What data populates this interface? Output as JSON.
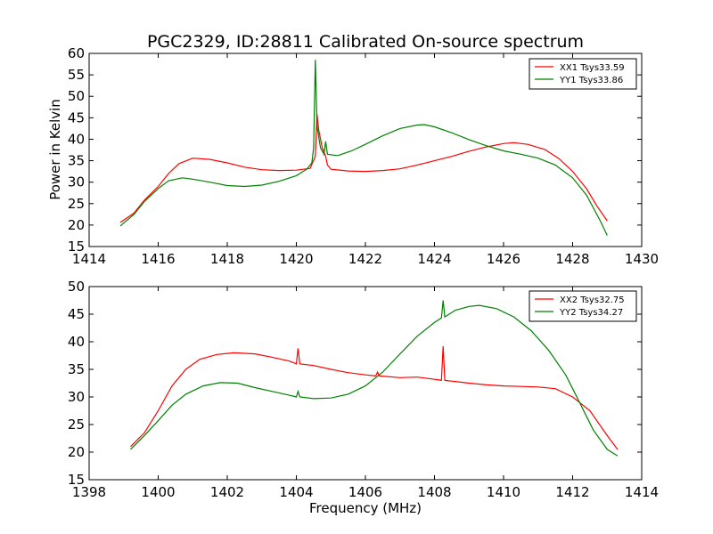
{
  "figure": {
    "title": "PGC2329, ID:28811 Calibrated On-source spectrum",
    "xlabel": "Frequency (MHz)",
    "ylabel": "Power in Kelvin"
  },
  "chart_data": [
    {
      "type": "line",
      "title": "PGC2329, ID:28811 Calibrated On-source spectrum",
      "xlabel": "",
      "ylabel": "Power in Kelvin",
      "xlim": [
        1414,
        1430
      ],
      "ylim": [
        15,
        60
      ],
      "xticks": [
        1414,
        1416,
        1418,
        1420,
        1422,
        1424,
        1426,
        1428,
        1430
      ],
      "yticks": [
        15,
        20,
        25,
        30,
        35,
        40,
        45,
        50,
        55,
        60
      ],
      "legend_position": "top-right",
      "grid": false,
      "series": [
        {
          "name": "XX1 Tsys33.59",
          "color": "#ff0000",
          "points": [
            [
              1414.9,
              20.6
            ],
            [
              1415.3,
              22.8
            ],
            [
              1415.6,
              25.8
            ],
            [
              1416.0,
              29.0
            ],
            [
              1416.3,
              32.0
            ],
            [
              1416.6,
              34.3
            ],
            [
              1417.0,
              35.6
            ],
            [
              1417.5,
              35.3
            ],
            [
              1418.0,
              34.5
            ],
            [
              1418.5,
              33.5
            ],
            [
              1419.0,
              32.9
            ],
            [
              1419.5,
              32.7
            ],
            [
              1420.0,
              32.8
            ],
            [
              1420.4,
              33.2
            ],
            [
              1420.55,
              36.0
            ],
            [
              1420.6,
              45.8
            ],
            [
              1420.65,
              42.0
            ],
            [
              1420.75,
              38.0
            ],
            [
              1420.85,
              36.0
            ],
            [
              1420.9,
              34.0
            ],
            [
              1421.0,
              33.0
            ],
            [
              1421.5,
              32.6
            ],
            [
              1422.0,
              32.5
            ],
            [
              1422.5,
              32.7
            ],
            [
              1423.0,
              33.1
            ],
            [
              1423.5,
              34.0
            ],
            [
              1424.0,
              35.0
            ],
            [
              1424.5,
              36.0
            ],
            [
              1425.0,
              37.2
            ],
            [
              1425.5,
              38.2
            ],
            [
              1426.0,
              39.0
            ],
            [
              1426.3,
              39.2
            ],
            [
              1426.7,
              38.8
            ],
            [
              1427.2,
              37.6
            ],
            [
              1427.6,
              35.5
            ],
            [
              1428.0,
              32.5
            ],
            [
              1428.4,
              28.5
            ],
            [
              1428.7,
              24.5
            ],
            [
              1429.0,
              21.0
            ]
          ]
        },
        {
          "name": "YY1 Tsys33.86",
          "color": "#008000",
          "points": [
            [
              1414.9,
              19.8
            ],
            [
              1415.3,
              22.5
            ],
            [
              1415.6,
              25.5
            ],
            [
              1416.0,
              28.5
            ],
            [
              1416.3,
              30.3
            ],
            [
              1416.7,
              31.0
            ],
            [
              1417.0,
              30.7
            ],
            [
              1417.5,
              30.0
            ],
            [
              1418.0,
              29.2
            ],
            [
              1418.5,
              29.0
            ],
            [
              1419.0,
              29.3
            ],
            [
              1419.5,
              30.2
            ],
            [
              1420.0,
              31.5
            ],
            [
              1420.3,
              33.0
            ],
            [
              1420.45,
              34.5
            ],
            [
              1420.5,
              38.0
            ],
            [
              1420.55,
              58.5
            ],
            [
              1420.6,
              43.0
            ],
            [
              1420.7,
              38.0
            ],
            [
              1420.8,
              36.5
            ],
            [
              1420.85,
              39.5
            ],
            [
              1420.9,
              36.5
            ],
            [
              1421.2,
              36.2
            ],
            [
              1421.6,
              37.3
            ],
            [
              1422.0,
              38.8
            ],
            [
              1422.5,
              40.8
            ],
            [
              1423.0,
              42.5
            ],
            [
              1423.5,
              43.3
            ],
            [
              1423.7,
              43.4
            ],
            [
              1424.0,
              42.9
            ],
            [
              1424.5,
              41.5
            ],
            [
              1425.0,
              39.9
            ],
            [
              1425.5,
              38.5
            ],
            [
              1426.0,
              37.3
            ],
            [
              1426.5,
              36.5
            ],
            [
              1427.0,
              35.6
            ],
            [
              1427.5,
              34.0
            ],
            [
              1428.0,
              31.0
            ],
            [
              1428.4,
              27.0
            ],
            [
              1428.8,
              21.0
            ],
            [
              1429.0,
              17.6
            ]
          ]
        }
      ]
    },
    {
      "type": "line",
      "title": "",
      "xlabel": "Frequency (MHz)",
      "ylabel": "",
      "xlim": [
        1398,
        1414
      ],
      "ylim": [
        15,
        50
      ],
      "xticks": [
        1398,
        1400,
        1402,
        1404,
        1406,
        1408,
        1410,
        1412,
        1414
      ],
      "yticks": [
        15,
        20,
        25,
        30,
        35,
        40,
        45,
        50
      ],
      "legend_position": "top-right",
      "grid": false,
      "series": [
        {
          "name": "XX2 Tsys32.75",
          "color": "#ff0000",
          "points": [
            [
              1399.2,
              21.0
            ],
            [
              1399.6,
              23.5
            ],
            [
              1400.0,
              27.5
            ],
            [
              1400.4,
              32.0
            ],
            [
              1400.8,
              35.0
            ],
            [
              1401.2,
              36.8
            ],
            [
              1401.7,
              37.7
            ],
            [
              1402.2,
              38.0
            ],
            [
              1402.8,
              37.8
            ],
            [
              1403.3,
              37.2
            ],
            [
              1403.8,
              36.5
            ],
            [
              1404.0,
              36.0
            ],
            [
              1404.05,
              38.8
            ],
            [
              1404.1,
              36.0
            ],
            [
              1404.5,
              35.7
            ],
            [
              1405.0,
              35.0
            ],
            [
              1405.5,
              34.4
            ],
            [
              1406.0,
              34.0
            ],
            [
              1406.3,
              33.8
            ],
            [
              1406.35,
              34.5
            ],
            [
              1406.4,
              33.8
            ],
            [
              1407.0,
              33.5
            ],
            [
              1407.5,
              33.6
            ],
            [
              1408.0,
              33.2
            ],
            [
              1408.2,
              33.0
            ],
            [
              1408.25,
              39.2
            ],
            [
              1408.3,
              33.0
            ],
            [
              1408.6,
              32.8
            ],
            [
              1409.0,
              32.5
            ],
            [
              1409.5,
              32.2
            ],
            [
              1410.0,
              32.0
            ],
            [
              1410.5,
              31.9
            ],
            [
              1411.0,
              31.8
            ],
            [
              1411.5,
              31.5
            ],
            [
              1412.0,
              30.0
            ],
            [
              1412.5,
              27.5
            ],
            [
              1413.0,
              23.0
            ],
            [
              1413.3,
              20.5
            ]
          ]
        },
        {
          "name": "YY2 Tsys34.27",
          "color": "#008000",
          "points": [
            [
              1399.2,
              20.5
            ],
            [
              1399.6,
              23.0
            ],
            [
              1400.0,
              25.7
            ],
            [
              1400.4,
              28.5
            ],
            [
              1400.8,
              30.5
            ],
            [
              1401.3,
              32.0
            ],
            [
              1401.8,
              32.6
            ],
            [
              1402.3,
              32.5
            ],
            [
              1402.8,
              31.7
            ],
            [
              1403.3,
              31.0
            ],
            [
              1403.8,
              30.3
            ],
            [
              1404.0,
              30.0
            ],
            [
              1404.05,
              31.0
            ],
            [
              1404.1,
              30.0
            ],
            [
              1404.5,
              29.7
            ],
            [
              1405.0,
              29.8
            ],
            [
              1405.5,
              30.5
            ],
            [
              1406.0,
              32.0
            ],
            [
              1406.5,
              34.5
            ],
            [
              1407.0,
              37.8
            ],
            [
              1407.5,
              41.0
            ],
            [
              1408.0,
              43.5
            ],
            [
              1408.2,
              44.3
            ],
            [
              1408.25,
              47.5
            ],
            [
              1408.3,
              44.5
            ],
            [
              1408.6,
              45.7
            ],
            [
              1409.0,
              46.4
            ],
            [
              1409.3,
              46.6
            ],
            [
              1409.8,
              46.0
            ],
            [
              1410.3,
              44.5
            ],
            [
              1410.8,
              42.0
            ],
            [
              1411.3,
              38.5
            ],
            [
              1411.8,
              34.0
            ],
            [
              1412.2,
              29.0
            ],
            [
              1412.6,
              24.0
            ],
            [
              1413.0,
              20.5
            ],
            [
              1413.3,
              19.3
            ]
          ]
        }
      ]
    }
  ]
}
